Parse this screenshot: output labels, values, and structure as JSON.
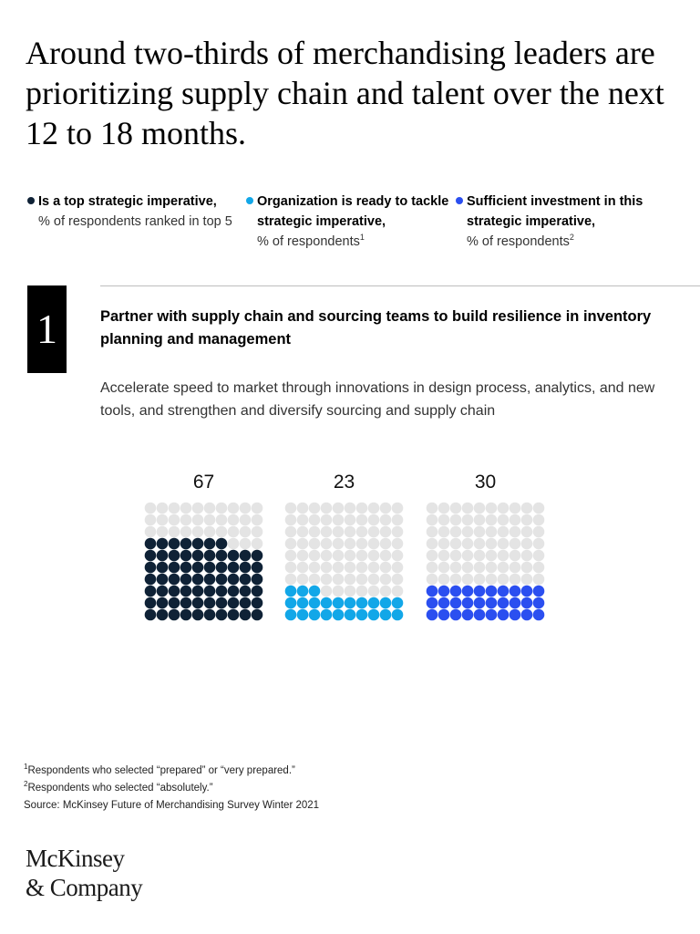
{
  "title": "Around two-thirds of merchandising leaders are prioritizing supply chain and talent over the next 12 to 18 months.",
  "legend": [
    {
      "title": "Is a top strategic imperative,",
      "sub": "% of respondents ranked in top 5",
      "sup": "",
      "color": "#0f2236"
    },
    {
      "title": "Organization is ready to tackle strategic imperative,",
      "sub": "% of respondents",
      "sup": "1",
      "color": "#12a7e8"
    },
    {
      "title": "Sufficient investment in this strategic imperative,",
      "sub": "% of respondents",
      "sup": "2",
      "color": "#2b4ff0"
    }
  ],
  "item": {
    "number": "1",
    "title": "Partner with supply chain and sourcing teams to build resilience in inventory planning and management",
    "description": "Accelerate speed to market through innovations in design process, analytics, and new tools, and strengthen and diversify sourcing and supply chain"
  },
  "chart_data": {
    "type": "waffle",
    "grid": {
      "rows": 10,
      "cols": 10
    },
    "empty_color": "#e4e4e4",
    "series": [
      {
        "value": 67,
        "color": "#0f2236"
      },
      {
        "value": 23,
        "color": "#12a7e8"
      },
      {
        "value": 30,
        "color": "#2b4ff0"
      }
    ]
  },
  "footnotes": {
    "note1": {
      "mark": "1",
      "text": "Respondents who selected “prepared” or “very prepared.”"
    },
    "note2": {
      "mark": "2",
      "text": "Respondents who selected “absolutely.”"
    },
    "source": "Source: McKinsey Future of Merchandising Survey Winter 2021"
  },
  "logo": {
    "line1": "McKinsey",
    "line2": "& Company"
  }
}
